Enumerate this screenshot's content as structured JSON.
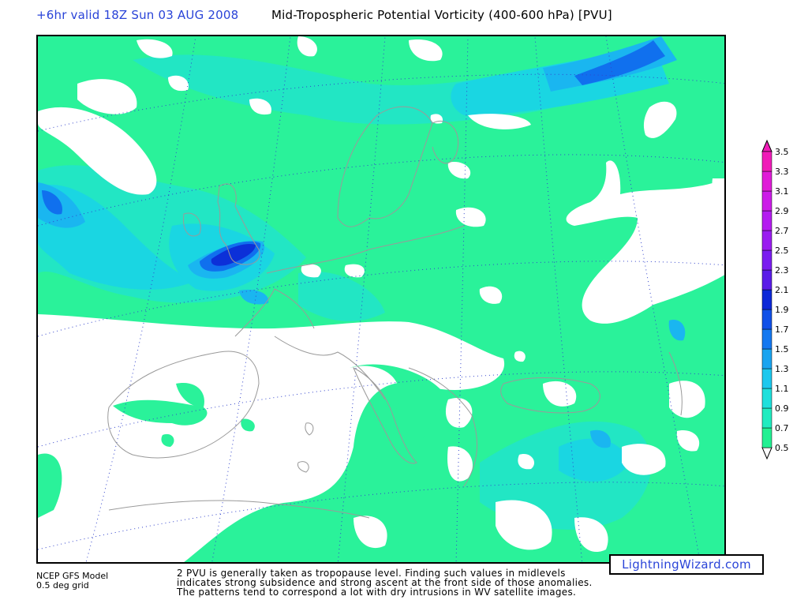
{
  "header": {
    "valid_time": "+6hr valid 18Z Sun 03 AUG 2008",
    "title": "Mid-Tropospheric Potential Vorticity (400-600 hPa) [PVU]"
  },
  "footer": {
    "model": "NCEP GFS Model",
    "grid": "0.5 deg grid",
    "note_lines": [
      "2 PVU is generally taken as tropopause level. Finding such values in midlevels",
      "indicates strong subsidence and strong ascent at the front side of those anomalies.",
      "The patterns tend to correspond a lot with dry intrusions in WV satellite images."
    ]
  },
  "credit": "LightningWizard.com",
  "colorbar": {
    "levels": [
      "0.5",
      "0.7",
      "0.9",
      "1.1",
      "1.3",
      "1.5",
      "1.7",
      "1.9",
      "2.1",
      "2.3",
      "2.5",
      "2.7",
      "2.9",
      "3.1",
      "3.3",
      "3.5"
    ],
    "colors": [
      "#22f092",
      "#20ecc0",
      "#1ee0dc",
      "#1cc8ee",
      "#1aa4f0",
      "#1478f0",
      "#1050e8",
      "#0c28d8",
      "#5a1ce8",
      "#7a1cf0",
      "#9a1cf0",
      "#b41cf0",
      "#cc1ce8",
      "#e01cd8",
      "#f01cb8"
    ]
  },
  "map_fills": {
    "base": "#2af29a",
    "mid": "#22e6c4",
    "light_blue": "#1ad6e2",
    "blue": "#1ab6f0",
    "deep_blue": "#1070ee",
    "navy": "#0c30d8",
    "coast": "#9a9a9a",
    "grid": "#3344cc"
  }
}
